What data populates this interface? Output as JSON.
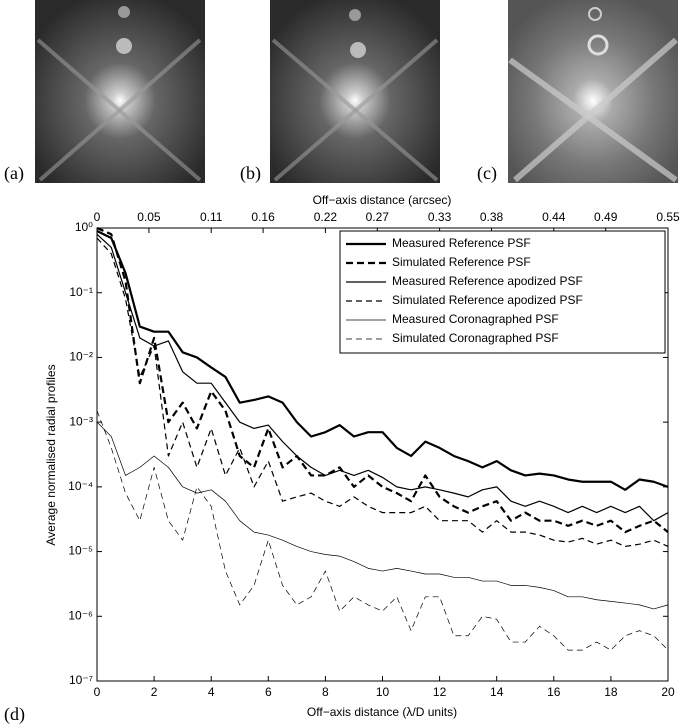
{
  "panel_labels": [
    "(a)",
    "(b)",
    "(c)",
    "(d)"
  ],
  "chart_data": {
    "type": "line",
    "xlabel": "Off−axis distance (λ/D units)",
    "ylabel": "Average normalised radial profiles",
    "x2label": "Off−axis distance (arcsec)",
    "log_y": true,
    "legend": "upper right",
    "xlim": [
      0,
      20
    ],
    "xticks": [
      0,
      2,
      4,
      6,
      8,
      10,
      12,
      14,
      16,
      18,
      20
    ],
    "x2lim": [
      0,
      0.55
    ],
    "x2ticks": [
      0,
      0.05,
      0.11,
      0.16,
      0.22,
      0.27,
      0.33,
      0.38,
      0.44,
      0.49,
      0.55
    ],
    "ylim": [
      1e-07,
      1
    ],
    "yticks": [
      {
        "value": 1e-07,
        "label": "10⁻⁷"
      },
      {
        "value": 1e-06,
        "label": "10⁻⁶"
      },
      {
        "value": 1e-05,
        "label": "10⁻⁵"
      },
      {
        "value": 0.0001,
        "label": "10⁻⁴"
      },
      {
        "value": 0.001,
        "label": "10⁻³"
      },
      {
        "value": 0.01,
        "label": "10⁻²"
      },
      {
        "value": 0.1,
        "label": "10⁻¹"
      },
      {
        "value": 1,
        "label": "10⁰"
      }
    ],
    "x": [
      0,
      0.5,
      1,
      1.5,
      2,
      2.5,
      3,
      3.5,
      4,
      4.5,
      5,
      5.5,
      6,
      6.5,
      7,
      7.5,
      8,
      8.5,
      9,
      9.5,
      10,
      10.5,
      11,
      11.5,
      12,
      12.5,
      13,
      13.5,
      14,
      14.5,
      15,
      15.5,
      16,
      16.5,
      17,
      17.5,
      18,
      18.5,
      19,
      19.5,
      20
    ],
    "series": [
      {
        "name": "Measured Reference PSF",
        "color": "#000000",
        "linestyle": "solid",
        "linewidth": 2.2,
        "values": [
          0.9,
          0.7,
          0.2,
          0.03,
          0.025,
          0.025,
          0.012,
          0.01,
          0.007,
          0.005,
          0.002,
          0.0022,
          0.0025,
          0.002,
          0.001,
          0.0006,
          0.0007,
          0.0009,
          0.0006,
          0.0007,
          0.0007,
          0.0004,
          0.0003,
          0.0005,
          0.0004,
          0.0003,
          0.00025,
          0.0002,
          0.00025,
          0.00018,
          0.00015,
          0.00016,
          0.00015,
          0.00013,
          0.00012,
          0.00012,
          0.00012,
          9e-05,
          0.00013,
          0.00012,
          0.0001
        ]
      },
      {
        "name": "Simulated Reference PSF",
        "color": "#000000",
        "linestyle": "dashed",
        "linewidth": 2.2,
        "values": [
          1,
          0.8,
          0.15,
          0.004,
          0.02,
          0.001,
          0.002,
          0.0008,
          0.003,
          0.0015,
          0.0003,
          0.0002,
          0.0008,
          0.0002,
          0.0003,
          0.00015,
          0.00015,
          0.0002,
          0.0001,
          0.00015,
          0.0001,
          8e-05,
          6e-05,
          0.00015,
          7e-05,
          5e-05,
          4e-05,
          5e-05,
          6e-05,
          3e-05,
          4e-05,
          3e-05,
          3e-05,
          2.5e-05,
          3e-05,
          2.5e-05,
          3e-05,
          2e-05,
          2.5e-05,
          3e-05,
          2e-05
        ]
      },
      {
        "name": "Measured Reference apodized PSF",
        "color": "#000000",
        "linestyle": "solid",
        "linewidth": 1.2,
        "values": [
          0.8,
          0.5,
          0.1,
          0.02,
          0.015,
          0.018,
          0.006,
          0.004,
          0.004,
          0.002,
          0.001,
          0.0008,
          0.0009,
          0.0005,
          0.0003,
          0.0002,
          0.00015,
          0.00018,
          0.00015,
          0.00018,
          0.00014,
          0.0001,
          9e-05,
          0.0001,
          9e-05,
          8e-05,
          7e-05,
          9e-05,
          0.0001,
          6e-05,
          5e-05,
          6e-05,
          5e-05,
          4e-05,
          5e-05,
          4e-05,
          5e-05,
          4e-05,
          5e-05,
          3e-05,
          4e-05
        ]
      },
      {
        "name": "Simulated Reference apodized PSF",
        "color": "#000000",
        "linestyle": "dashed",
        "linewidth": 1.2,
        "values": [
          0.7,
          0.4,
          0.08,
          0.005,
          0.015,
          0.0003,
          0.001,
          0.0002,
          0.0008,
          0.00015,
          0.0004,
          0.0001,
          0.00025,
          6e-05,
          7e-05,
          8e-05,
          6e-05,
          5e-05,
          7e-05,
          5e-05,
          4e-05,
          4e-05,
          4e-05,
          5e-05,
          3e-05,
          3e-05,
          3e-05,
          2e-05,
          3e-05,
          2e-05,
          2e-05,
          1.8e-05,
          1.5e-05,
          1.4e-05,
          1.6e-05,
          1.3e-05,
          1.5e-05,
          1.2e-05,
          1.3e-05,
          1.5e-05,
          1.2e-05
        ]
      },
      {
        "name": "Measured Coronagraphed PSF",
        "color": "#000000",
        "linestyle": "solid",
        "linewidth": 0.7,
        "values": [
          0.001,
          0.0006,
          0.00015,
          0.0002,
          0.0003,
          0.0002,
          0.0001,
          8e-05,
          9e-05,
          6e-05,
          3e-05,
          2e-05,
          1.8e-05,
          1.5e-05,
          1.2e-05,
          1e-05,
          9e-06,
          8.5e-06,
          7e-06,
          5.5e-06,
          5e-06,
          5.5e-06,
          5e-06,
          4.5e-06,
          4.5e-06,
          4e-06,
          4e-06,
          3.5e-06,
          3.5e-06,
          3e-06,
          3e-06,
          2.8e-06,
          2.5e-06,
          2e-06,
          2e-06,
          1.8e-06,
          1.7e-06,
          1.6e-06,
          1.5e-06,
          1.3e-06,
          1.5e-06
        ]
      },
      {
        "name": "Simulated Coronagraphed PSF",
        "color": "#000000",
        "linestyle": "dashed",
        "linewidth": 0.7,
        "values": [
          0.0015,
          0.0004,
          8e-05,
          3e-05,
          0.0002,
          3e-05,
          1.5e-05,
          0.0001,
          5e-05,
          5e-06,
          1.5e-06,
          3e-06,
          1.5e-05,
          3e-06,
          1.5e-06,
          2e-06,
          5e-06,
          1.2e-06,
          2e-06,
          1.5e-06,
          1.2e-06,
          2e-06,
          6e-07,
          2e-06,
          2e-06,
          5e-07,
          5e-07,
          1e-06,
          9e-07,
          4e-07,
          4e-07,
          7e-07,
          5e-07,
          3e-07,
          3e-07,
          4e-07,
          3e-07,
          5e-07,
          6e-07,
          5e-07,
          3e-07
        ]
      }
    ]
  }
}
